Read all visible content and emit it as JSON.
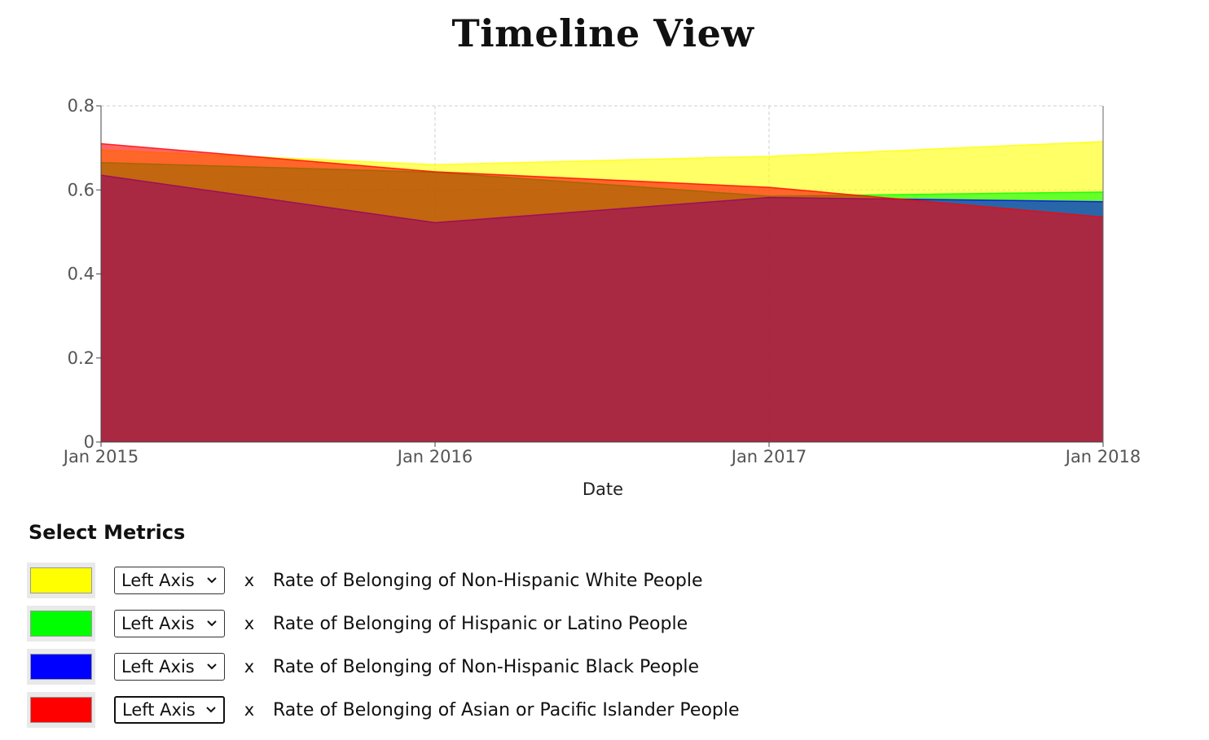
{
  "page": {
    "title": "Timeline View"
  },
  "chart_data": {
    "type": "area",
    "title": "Timeline View",
    "xlabel": "Date",
    "ylabel": "",
    "x": [
      "2015-01",
      "2016-01",
      "2017-01",
      "2018-01"
    ],
    "x_tick_labels": [
      "Jan 2015",
      "Jan 2016",
      "Jan 2017",
      "Jan 2018"
    ],
    "ylim": [
      0,
      0.8
    ],
    "y_ticks": [
      0,
      0.2,
      0.4,
      0.6,
      0.8
    ],
    "y_tick_labels": [
      "0",
      "0.2",
      "0.4",
      "0.6",
      "0.8"
    ],
    "grid": true,
    "stacked": false,
    "series": [
      {
        "name": "Rate of Belonging of Non-Hispanic White People",
        "color": "#ffff00",
        "values": [
          0.695,
          0.66,
          0.68,
          0.715
        ]
      },
      {
        "name": "Rate of Belonging of Hispanic or Latino People",
        "color": "#00ff00",
        "values": [
          0.665,
          0.642,
          0.585,
          0.595
        ]
      },
      {
        "name": "Rate of Belonging of Non-Hispanic Black People",
        "color": "#0000ff",
        "values": [
          0.635,
          0.522,
          0.582,
          0.572
        ]
      },
      {
        "name": "Rate of Belonging of Asian or Pacific Islander People",
        "color": "#ff0000",
        "values": [
          0.71,
          0.643,
          0.606,
          0.535
        ]
      }
    ]
  },
  "metrics": {
    "heading": "Select Metrics",
    "remove_label": "x",
    "items": [
      {
        "color": "#ffff00",
        "axis": "Left Axis",
        "label": "Rate of Belonging of Non-Hispanic White People"
      },
      {
        "color": "#00ff00",
        "axis": "Left Axis",
        "label": "Rate of Belonging of Hispanic or Latino People"
      },
      {
        "color": "#0000ff",
        "axis": "Left Axis",
        "label": "Rate of Belonging of Non-Hispanic Black People"
      },
      {
        "color": "#ff0000",
        "axis": "Left Axis",
        "label": "Rate of Belonging of Asian or Pacific Islander People"
      }
    ]
  }
}
